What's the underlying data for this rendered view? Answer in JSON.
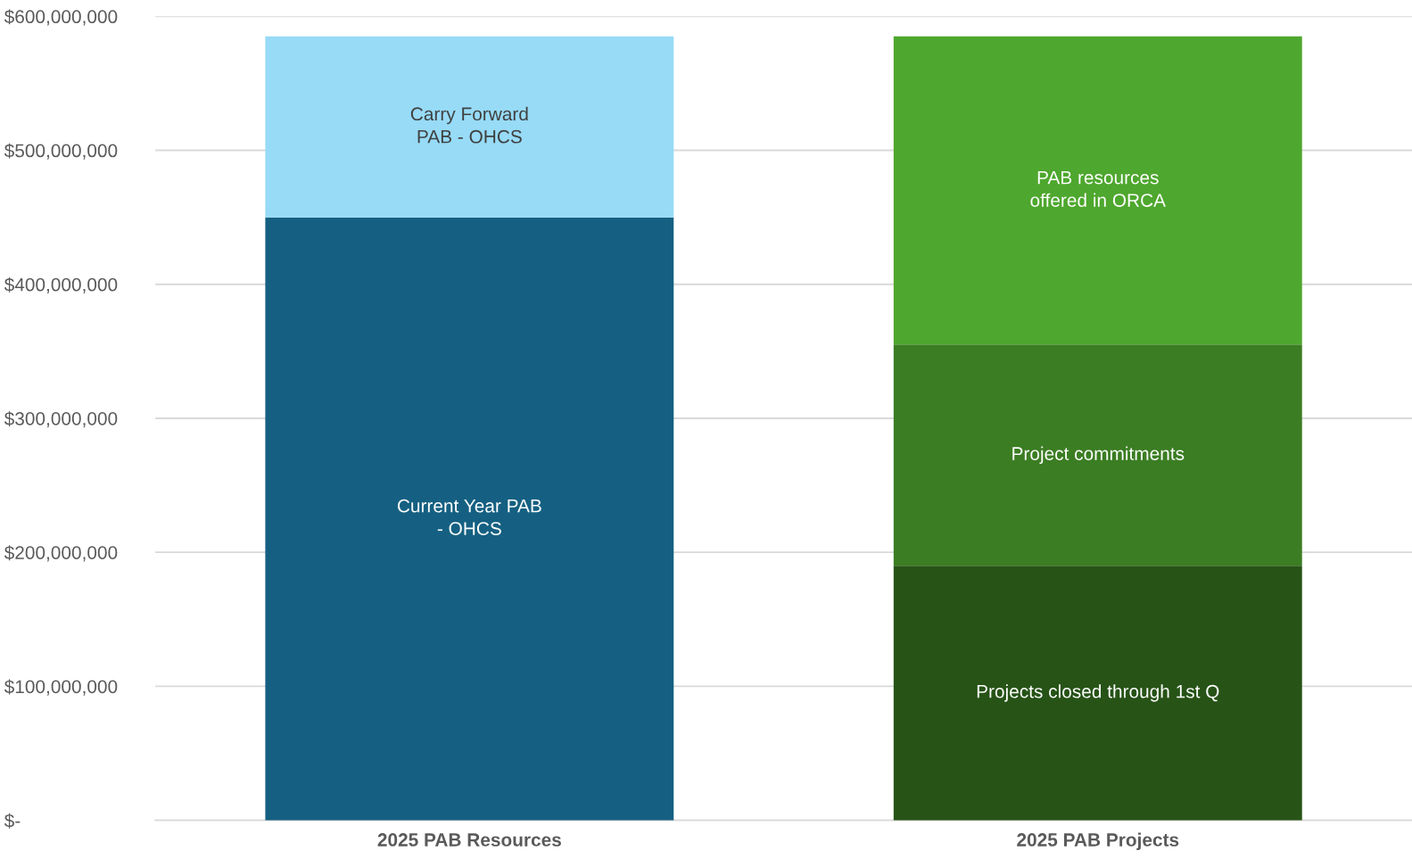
{
  "chart_data": {
    "type": "bar",
    "stacked": true,
    "categories": [
      "2025 PAB Resources",
      "2025 PAB Projects"
    ],
    "series": [
      {
        "name": "Current Year PAB\n- OHCS",
        "color": "#156082",
        "values": [
          450000000,
          null
        ]
      },
      {
        "name": "Carry Forward\nPAB - OHCS",
        "color": "#97dbf7",
        "values": [
          135000000,
          null
        ]
      },
      {
        "name": "Projects closed through 1st Q",
        "color": "#275317",
        "values": [
          null,
          190000000
        ]
      },
      {
        "name": "Project commitments",
        "color": "#3b7d23",
        "values": [
          null,
          165000000
        ]
      },
      {
        "name": "PAB resources\noffered in ORCA",
        "color": "#4ea72e",
        "values": [
          null,
          230000000
        ]
      }
    ],
    "ylim": [
      0,
      600000000
    ],
    "yticks": [
      {
        "value": 0,
        "label": "$-"
      },
      {
        "value": 100000000,
        "label": "$100,000,000"
      },
      {
        "value": 200000000,
        "label": "$200,000,000"
      },
      {
        "value": 300000000,
        "label": "$300,000,000"
      },
      {
        "value": 400000000,
        "label": "$400,000,000"
      },
      {
        "value": 500000000,
        "label": "$500,000,000"
      },
      {
        "value": 600000000,
        "label": "$600,000,000"
      }
    ],
    "grid": "y",
    "legend": false
  }
}
